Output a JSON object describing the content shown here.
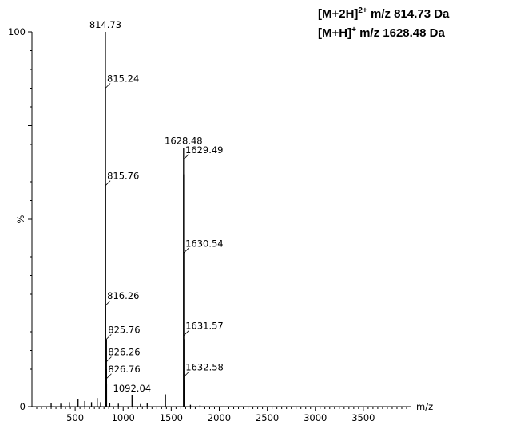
{
  "annotations": [
    {
      "species": "[M+2H]",
      "charge": "2+",
      "text": " m/z 814.73 Da"
    },
    {
      "species": "[M+H]",
      "charge": "+",
      "text": " m/z 1628.48 Da"
    }
  ],
  "chart_data": {
    "type": "bar",
    "title": "",
    "xlabel": "m/z",
    "ylabel": "%",
    "xlim": [
      50,
      4000
    ],
    "ylim": [
      0,
      100
    ],
    "x_ticks": [
      "500",
      "1000",
      "1500",
      "2000",
      "2500",
      "3000",
      "3500"
    ],
    "y_ticks": [
      "0",
      "100"
    ],
    "series": [
      {
        "values": [
          {
            "x": 814.73,
            "y": 100
          },
          {
            "x": 815.24,
            "y": 85
          },
          {
            "x": 815.76,
            "y": 59
          },
          {
            "x": 816.26,
            "y": 27
          },
          {
            "x": 825.76,
            "y": 18
          },
          {
            "x": 826.26,
            "y": 10
          },
          {
            "x": 826.76,
            "y": 6
          },
          {
            "x": 1092.04,
            "y": 3
          },
          {
            "x": 1628.48,
            "y": 69
          },
          {
            "x": 1629.49,
            "y": 62
          },
          {
            "x": 1630.54,
            "y": 41
          },
          {
            "x": 1631.57,
            "y": 18
          },
          {
            "x": 1632.58,
            "y": 7
          },
          {
            "x": 1440,
            "y": 3.3
          },
          {
            "x": 250,
            "y": 1
          },
          {
            "x": 350,
            "y": 0.8
          },
          {
            "x": 440,
            "y": 1.2
          },
          {
            "x": 530,
            "y": 2
          },
          {
            "x": 600,
            "y": 1.5
          },
          {
            "x": 670,
            "y": 1.2
          },
          {
            "x": 730,
            "y": 2.3
          },
          {
            "x": 765,
            "y": 1.2
          },
          {
            "x": 860,
            "y": 1
          },
          {
            "x": 950,
            "y": 0.8
          },
          {
            "x": 1180,
            "y": 0.7
          },
          {
            "x": 1250,
            "y": 0.9
          },
          {
            "x": 1700,
            "y": 0.5
          },
          {
            "x": 1800,
            "y": 0.4
          }
        ]
      }
    ],
    "peak_labels": [
      {
        "x": 814.73,
        "y": 100,
        "label": "814.73",
        "style": "top"
      },
      {
        "x": 815.24,
        "y": 85,
        "label": "815.24",
        "style": "leader"
      },
      {
        "x": 815.76,
        "y": 59,
        "label": "815.76",
        "style": "leader"
      },
      {
        "x": 816.26,
        "y": 27,
        "label": "816.26",
        "style": "leader"
      },
      {
        "x": 825.76,
        "y": 18,
        "label": "825.76",
        "style": "leader"
      },
      {
        "x": 826.26,
        "y": 12,
        "label": "826.26",
        "style": "leader"
      },
      {
        "x": 826.76,
        "y": 7.5,
        "label": "826.76",
        "style": "leader"
      },
      {
        "x": 1092.04,
        "y": 3,
        "label": "1092.04",
        "style": "top"
      },
      {
        "x": 1628.48,
        "y": 69,
        "label": "1628.48",
        "style": "top"
      },
      {
        "x": 1629.49,
        "y": 66,
        "label": "1629.49",
        "style": "leader"
      },
      {
        "x": 1630.54,
        "y": 41,
        "label": "1630.54",
        "style": "leader"
      },
      {
        "x": 1631.57,
        "y": 19,
        "label": "1631.57",
        "style": "leader"
      },
      {
        "x": 1632.58,
        "y": 8,
        "label": "1632.58",
        "style": "leader"
      }
    ]
  }
}
